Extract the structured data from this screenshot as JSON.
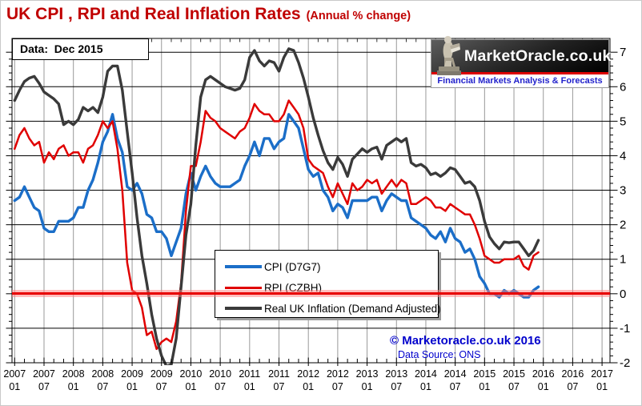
{
  "title": {
    "main": "UK CPI , RPI and Real Inflation Rates",
    "suffix": "(Annual % change)"
  },
  "overlays": {
    "data_note": "Data:  Dec 2015",
    "copyright": "© Marketoracle.co.uk 2016",
    "source": "Data Source: ONS"
  },
  "logo": {
    "name": "MarketOracle.co.uk",
    "tagline": "Financial Markets Analysis & Forecasts",
    "statue_icon": "oracle-statue-icon",
    "banner_red": "#dd0000",
    "tagline_color": "#2222cc"
  },
  "colors": {
    "title": "#c00000",
    "vertical_grid": "#999999",
    "horizontal_grid": "#000000",
    "credits_blue": "#0000cc"
  },
  "chart_data": {
    "type": "line",
    "title": "UK CPI , RPI and Real Inflation Rates (Annual % change)",
    "x_unit": "month",
    "x_range": [
      "2007-01",
      "2017-01"
    ],
    "data_through": "2015-12",
    "x_tick_labels": [
      "2007 01",
      "2007 07",
      "2008 01",
      "2008 07",
      "2009 01",
      "2009 07",
      "2010 01",
      "2010 07",
      "2011 01",
      "2011 07",
      "2012 01",
      "2012 07",
      "2013 01",
      "2013 07",
      "2014 01",
      "2014 07",
      "2015 01",
      "2015 07",
      "2016 01",
      "2016 07",
      "2017 01"
    ],
    "ylim": [
      -2,
      7
    ],
    "y_ticks": [
      7,
      6,
      5,
      4,
      3,
      2,
      1,
      0,
      -1,
      -2
    ],
    "y_axis_side": "right",
    "grid": true,
    "legend_position": "bottom-center",
    "zero_line": {
      "value": 0,
      "color": "#e80000",
      "band_color": "rgba(255,125,125,0.5)"
    },
    "series": [
      {
        "name": "CPI (D7G7)",
        "color": "#1b6ec8",
        "start": "2007-01",
        "values": [
          2.7,
          2.8,
          3.1,
          2.8,
          2.5,
          2.4,
          1.9,
          1.8,
          1.8,
          2.1,
          2.1,
          2.1,
          2.2,
          2.5,
          2.5,
          3.0,
          3.3,
          3.8,
          4.4,
          4.7,
          5.2,
          4.5,
          4.1,
          3.1,
          3.0,
          3.2,
          2.9,
          2.3,
          2.2,
          1.8,
          1.8,
          1.6,
          1.1,
          1.5,
          1.9,
          2.9,
          3.5,
          3.0,
          3.4,
          3.7,
          3.4,
          3.2,
          3.1,
          3.1,
          3.1,
          3.2,
          3.3,
          3.7,
          4.0,
          4.4,
          4.0,
          4.5,
          4.5,
          4.2,
          4.4,
          4.5,
          5.2,
          5.0,
          4.8,
          4.2,
          3.6,
          3.4,
          3.5,
          3.0,
          2.8,
          2.4,
          2.6,
          2.5,
          2.2,
          2.7,
          2.7,
          2.7,
          2.7,
          2.8,
          2.8,
          2.4,
          2.7,
          2.9,
          2.8,
          2.7,
          2.7,
          2.2,
          2.1,
          2.0,
          1.9,
          1.7,
          1.6,
          1.8,
          1.5,
          1.9,
          1.6,
          1.5,
          1.2,
          1.3,
          1.0,
          0.5,
          0.3,
          0.0,
          0.0,
          -0.1,
          0.1,
          0.0,
          0.1,
          0.0,
          -0.1,
          -0.1,
          0.1,
          0.2
        ]
      },
      {
        "name": "RPI (CZBH)",
        "color": "#e00000",
        "start": "2007-01",
        "values": [
          4.2,
          4.6,
          4.8,
          4.5,
          4.3,
          4.4,
          3.8,
          4.1,
          3.9,
          4.2,
          4.3,
          4.0,
          4.1,
          4.1,
          3.8,
          4.2,
          4.3,
          4.6,
          5.0,
          4.8,
          5.0,
          4.2,
          3.0,
          0.9,
          0.1,
          0.0,
          -0.4,
          -1.2,
          -1.1,
          -1.6,
          -1.4,
          -1.3,
          -1.4,
          -0.8,
          0.3,
          2.4,
          3.7,
          3.7,
          4.4,
          5.3,
          5.1,
          5.0,
          4.8,
          4.7,
          4.6,
          4.5,
          4.7,
          4.8,
          5.1,
          5.5,
          5.3,
          5.2,
          5.2,
          5.0,
          5.0,
          5.2,
          5.6,
          5.4,
          5.2,
          4.8,
          3.9,
          3.7,
          3.6,
          3.5,
          3.1,
          2.8,
          3.2,
          2.9,
          2.6,
          3.2,
          3.0,
          3.1,
          3.3,
          3.2,
          3.3,
          2.9,
          3.1,
          3.3,
          3.1,
          3.3,
          3.2,
          2.6,
          2.6,
          2.7,
          2.8,
          2.7,
          2.5,
          2.5,
          2.4,
          2.6,
          2.5,
          2.4,
          2.3,
          2.3,
          2.0,
          1.6,
          1.1,
          1.0,
          0.9,
          0.9,
          1.0,
          1.0,
          1.0,
          1.1,
          0.8,
          0.7,
          1.1,
          1.2
        ]
      },
      {
        "name": "Real UK Inflation (Demand Adjusted)",
        "color": "#3a3a3a",
        "start": "2007-01",
        "values": [
          5.6,
          5.9,
          6.15,
          6.25,
          6.3,
          6.1,
          5.85,
          5.75,
          5.65,
          5.5,
          4.9,
          5.0,
          4.9,
          5.05,
          5.4,
          5.3,
          5.4,
          5.25,
          5.7,
          6.45,
          6.6,
          6.6,
          5.9,
          4.7,
          3.5,
          2.2,
          1.1,
          0.3,
          -0.6,
          -1.3,
          -1.8,
          -2.1,
          -2.05,
          -1.3,
          0.2,
          1.7,
          2.6,
          4.3,
          5.7,
          6.2,
          6.3,
          6.2,
          6.1,
          6.0,
          5.95,
          5.9,
          5.95,
          6.2,
          6.85,
          7.05,
          6.75,
          6.6,
          6.75,
          6.7,
          6.45,
          6.85,
          7.1,
          7.05,
          6.7,
          6.25,
          5.7,
          5.1,
          4.6,
          4.15,
          3.8,
          3.6,
          3.95,
          3.75,
          3.4,
          3.9,
          4.05,
          4.2,
          4.1,
          4.2,
          4.25,
          3.9,
          4.3,
          4.4,
          4.5,
          4.4,
          4.5,
          3.8,
          3.7,
          3.75,
          3.65,
          3.45,
          3.5,
          3.4,
          3.5,
          3.65,
          3.6,
          3.4,
          3.2,
          3.25,
          3.1,
          2.7,
          2.1,
          1.65,
          1.45,
          1.3,
          1.5,
          1.48,
          1.5,
          1.5,
          1.3,
          1.1,
          1.25,
          1.55
        ]
      }
    ]
  }
}
